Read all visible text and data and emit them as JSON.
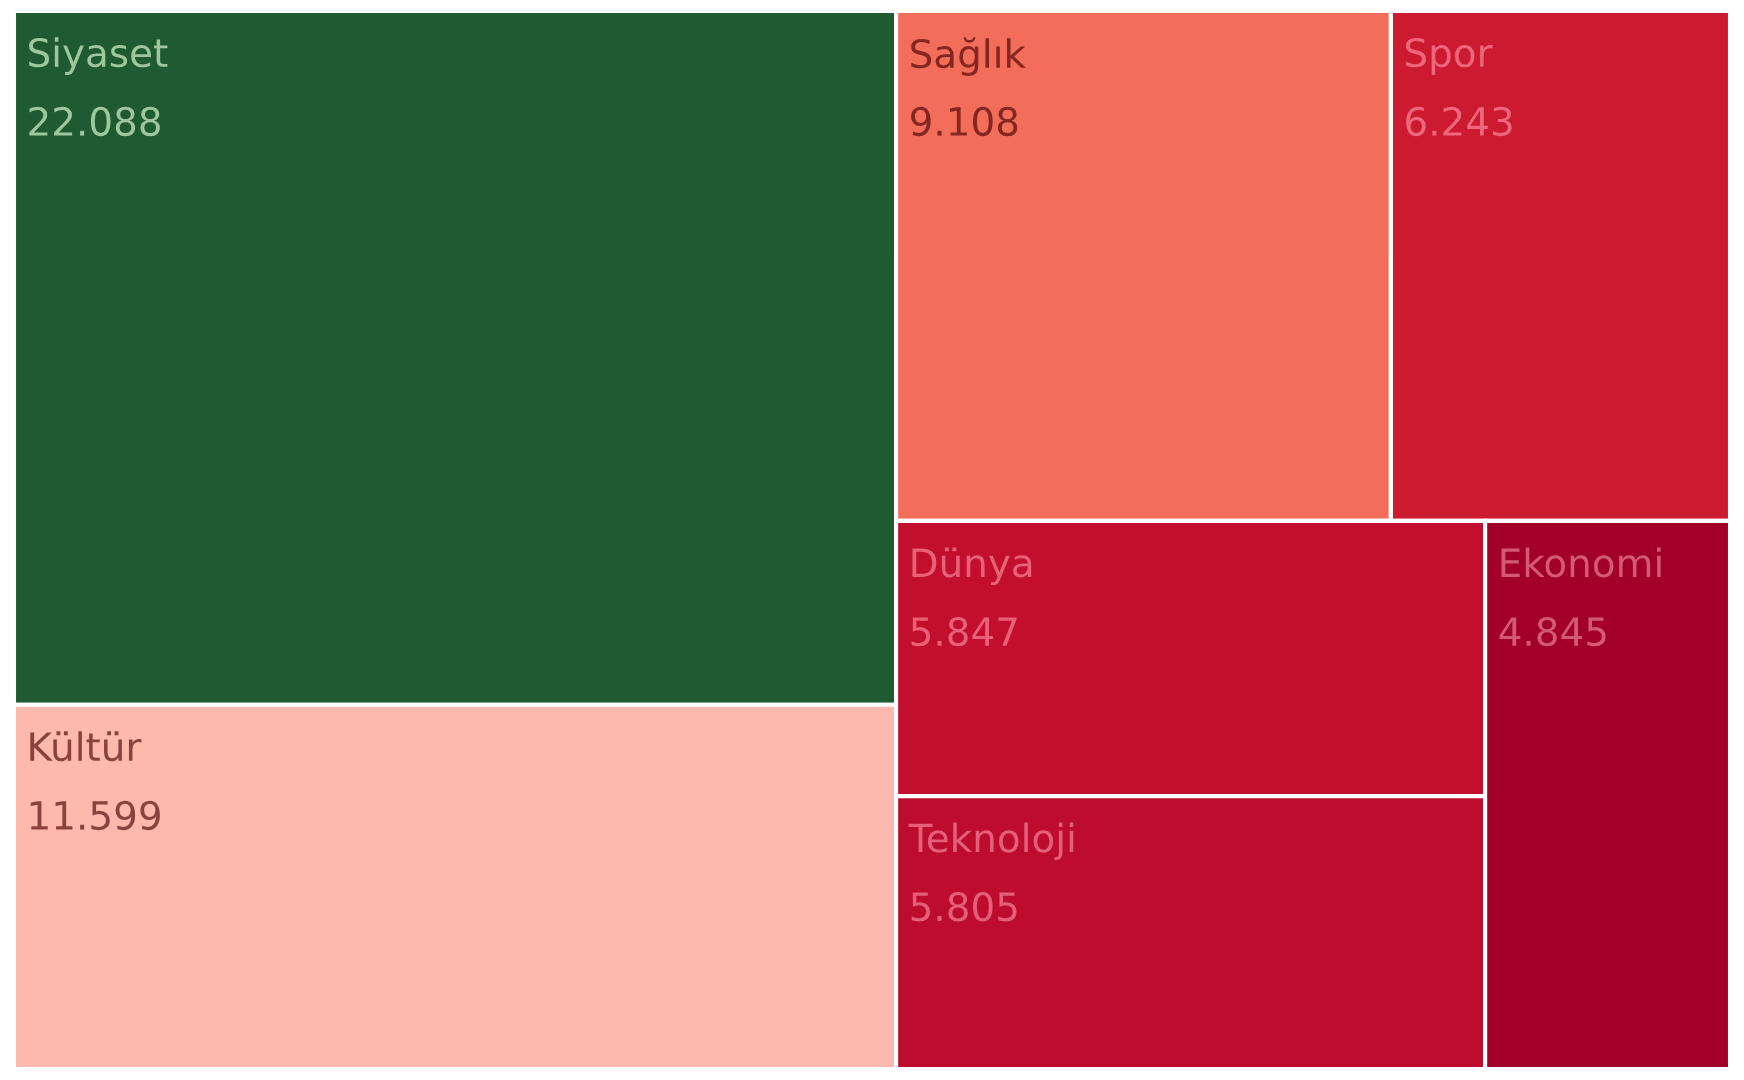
{
  "chart_data": {
    "type": "other",
    "categories": [
      "Siyaset",
      "Kültür",
      "Sağlık",
      "Spor",
      "Dünya",
      "Teknoloji",
      "Ekonomi"
    ],
    "values": [
      22088,
      11599,
      9108,
      6243,
      5847,
      5805,
      4845
    ],
    "value_labels": [
      "22.088",
      "11.599",
      "9.108",
      "6.243",
      "5.847",
      "5.805",
      "4.845"
    ],
    "colors": [
      "#1f5a30",
      "#fdb9ae",
      "#f26e5a",
      "#cc1a30",
      "#c20f2e",
      "#bd0c2e",
      "#a20029"
    ]
  }
}
